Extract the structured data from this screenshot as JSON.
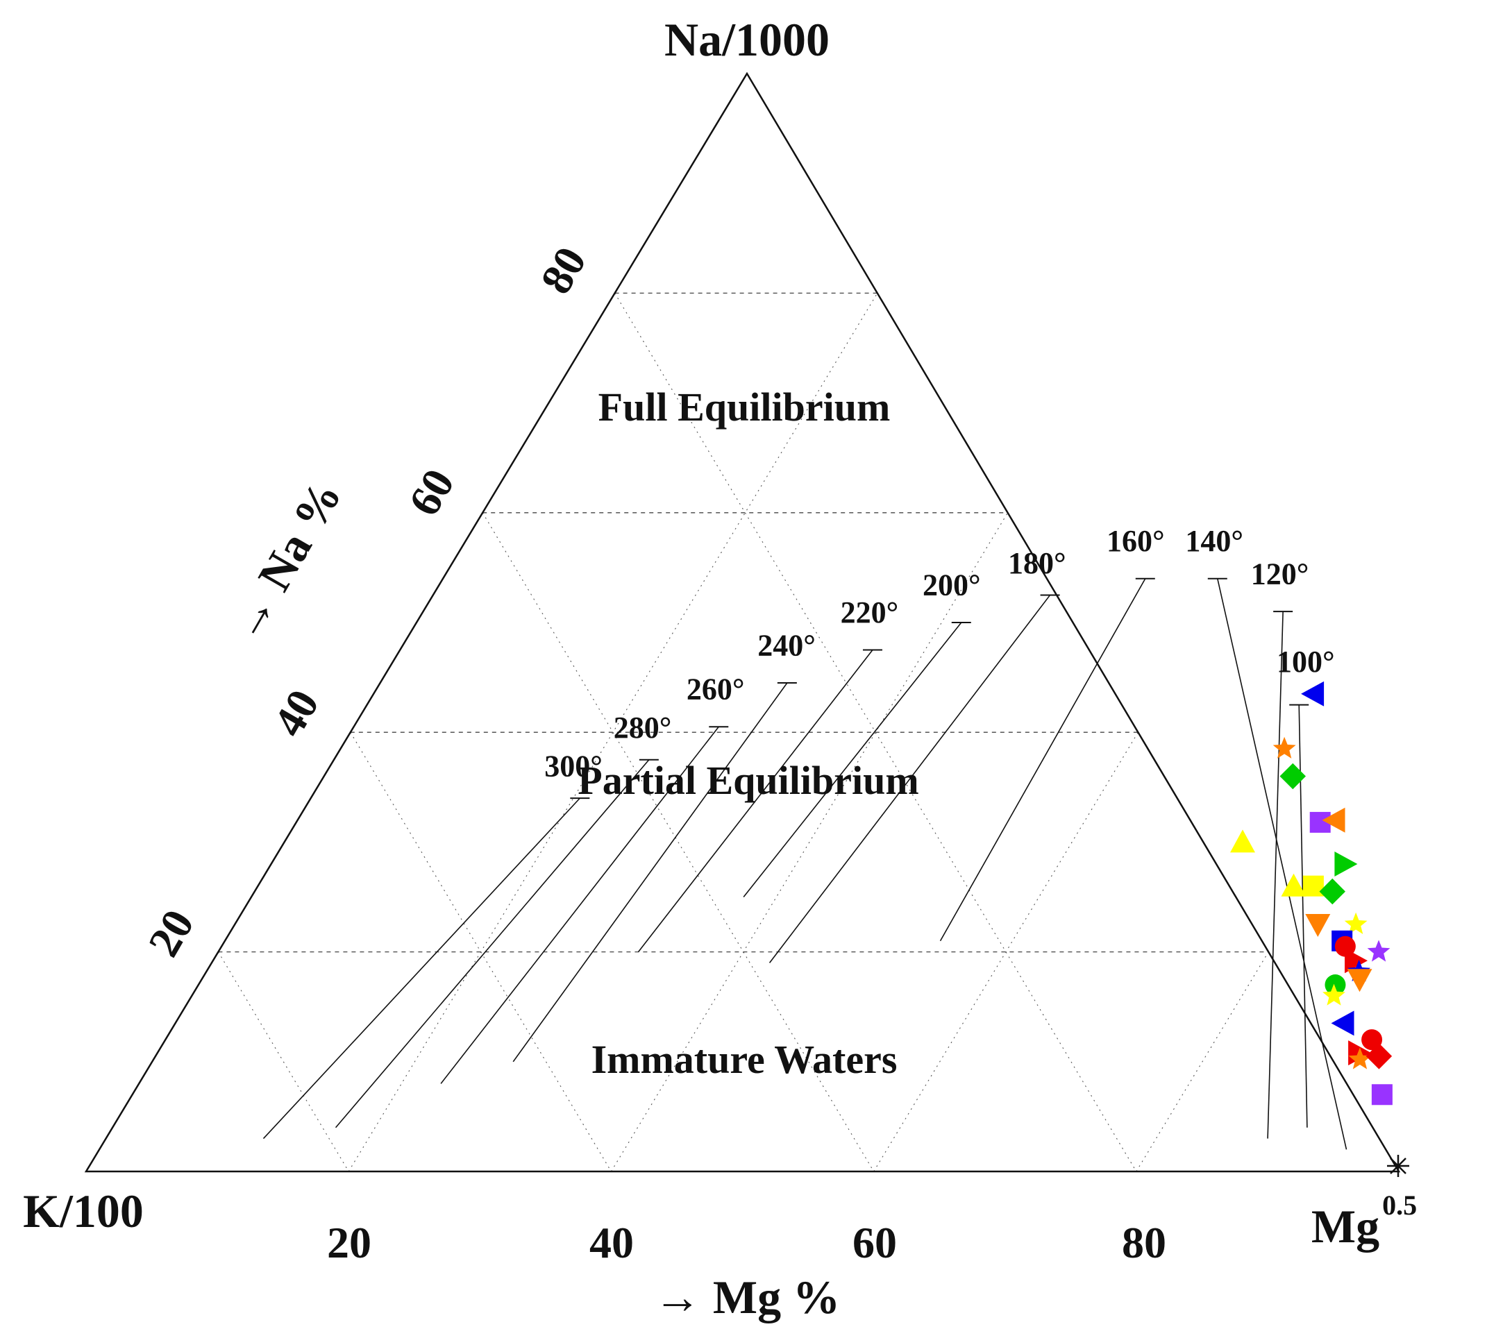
{
  "chart_data": {
    "type": "ternary-scatter",
    "title": "",
    "vertices": {
      "top": "Na/1000",
      "left": "K/100",
      "right_base": "Mg",
      "right_sup": "0.5"
    },
    "axes": {
      "mg_axis_title": "→ Mg %",
      "na_axis_title": "→ Na %",
      "mg_ticks": [
        "20",
        "40",
        "60",
        "80"
      ],
      "na_ticks": [
        "20",
        "40",
        "60",
        "80"
      ]
    },
    "regions": [
      "Full Equilibrium",
      "Partial Equilibrium",
      "Immature Waters"
    ],
    "isotherm_labels": [
      "100°",
      "120°",
      "140°",
      "160°",
      "180°",
      "200°",
      "220°",
      "240°",
      "260°",
      "280°",
      "300°"
    ],
    "isotherms": [
      {
        "label": "100°",
        "pos": [
          0.7,
          0.455
        ],
        "eq": [
          0.71,
          0.425
        ],
        "end": [
          0.91,
          0.04
        ]
      },
      {
        "label": "120°",
        "pos": [
          0.64,
          0.535
        ],
        "eq": [
          0.655,
          0.51
        ],
        "end": [
          0.885,
          0.03
        ]
      },
      {
        "label": "140°",
        "pos": [
          0.575,
          0.565
        ],
        "eq": [
          0.59,
          0.54
        ],
        "end": [
          0.95,
          0.02
        ]
      },
      {
        "label": "160°",
        "pos": [
          0.515,
          0.565
        ],
        "eq": [
          0.535,
          0.54
        ],
        "end": [
          0.545,
          0.21
        ]
      },
      {
        "label": "180°",
        "pos": [
          0.45,
          0.545
        ],
        "eq": [
          0.47,
          0.525
        ],
        "end": [
          0.425,
          0.19
        ]
      },
      {
        "label": "200°",
        "pos": [
          0.395,
          0.525
        ],
        "eq": [
          0.415,
          0.5
        ],
        "end": [
          0.375,
          0.25
        ]
      },
      {
        "label": "220°",
        "pos": [
          0.345,
          0.5
        ],
        "eq": [
          0.36,
          0.475
        ],
        "end": [
          0.32,
          0.2
        ]
      },
      {
        "label": "240°",
        "pos": [
          0.297,
          0.47
        ],
        "eq": [
          0.31,
          0.445
        ],
        "end": [
          0.275,
          0.1
        ]
      },
      {
        "label": "260°",
        "pos": [
          0.263,
          0.43
        ],
        "eq": [
          0.278,
          0.405
        ],
        "end": [
          0.23,
          0.08
        ]
      },
      {
        "label": "280°",
        "pos": [
          0.225,
          0.395
        ],
        "eq": [
          0.24,
          0.375
        ],
        "end": [
          0.17,
          0.04
        ]
      },
      {
        "label": "300°",
        "pos": [
          0.19,
          0.36
        ],
        "eq": [
          0.205,
          0.34
        ],
        "end": [
          0.12,
          0.03
        ]
      }
    ],
    "marker_colors": {
      "blue": "#0000ee",
      "orange": "#ff8000",
      "green": "#00cc00",
      "yellow": "#ffff00",
      "purple": "#9933ff",
      "red": "#ee0000"
    },
    "points": [
      {
        "mg": 71.6,
        "na": 43.5,
        "marker": "triangle-left",
        "color": "blue"
      },
      {
        "mg": 71.9,
        "na": 38.5,
        "marker": "star",
        "color": "orange"
      },
      {
        "mg": 73.8,
        "na": 36.0,
        "marker": "diamond",
        "color": "green"
      },
      {
        "mg": 78.0,
        "na": 31.8,
        "marker": "square",
        "color": "purple"
      },
      {
        "mg": 79.0,
        "na": 32.0,
        "marker": "triangle-left",
        "color": "orange"
      },
      {
        "mg": 73.0,
        "na": 30.0,
        "marker": "triangle-up",
        "color": "yellow"
      },
      {
        "mg": 81.8,
        "na": 28.0,
        "marker": "triangle-right",
        "color": "green"
      },
      {
        "mg": 78.9,
        "na": 26.0,
        "marker": "triangle-up",
        "color": "yellow"
      },
      {
        "mg": 80.4,
        "na": 26.0,
        "marker": "square",
        "color": "yellow"
      },
      {
        "mg": 82.1,
        "na": 25.5,
        "marker": "diamond",
        "color": "green"
      },
      {
        "mg": 82.5,
        "na": 22.5,
        "marker": "triangle-down",
        "color": "orange"
      },
      {
        "mg": 85.4,
        "na": 22.5,
        "marker": "star",
        "color": "yellow"
      },
      {
        "mg": 85.1,
        "na": 21.0,
        "marker": "square",
        "color": "blue"
      },
      {
        "mg": 85.6,
        "na": 20.5,
        "marker": "circle",
        "color": "red"
      },
      {
        "mg": 88.4,
        "na": 20.0,
        "marker": "star",
        "color": "purple"
      },
      {
        "mg": 87.0,
        "na": 19.2,
        "marker": "triangle-right",
        "color": "red"
      },
      {
        "mg": 87.8,
        "na": 18.2,
        "marker": "star",
        "color": "blue"
      },
      {
        "mg": 88.2,
        "na": 17.5,
        "marker": "triangle-down",
        "color": "orange"
      },
      {
        "mg": 86.6,
        "na": 17.0,
        "marker": "circle",
        "color": "green"
      },
      {
        "mg": 87.0,
        "na": 16.0,
        "marker": "star",
        "color": "yellow"
      },
      {
        "mg": 89.0,
        "na": 13.5,
        "marker": "triangle-left",
        "color": "blue"
      },
      {
        "mg": 91.9,
        "na": 12.0,
        "marker": "circle",
        "color": "red"
      },
      {
        "mg": 91.5,
        "na": 10.8,
        "marker": "triangle-right",
        "color": "red"
      },
      {
        "mg": 91.9,
        "na": 10.2,
        "marker": "star",
        "color": "orange"
      },
      {
        "mg": 93.2,
        "na": 10.5,
        "marker": "diamond",
        "color": "red"
      },
      {
        "mg": 95.2,
        "na": 7.0,
        "marker": "square",
        "color": "purple"
      }
    ]
  }
}
